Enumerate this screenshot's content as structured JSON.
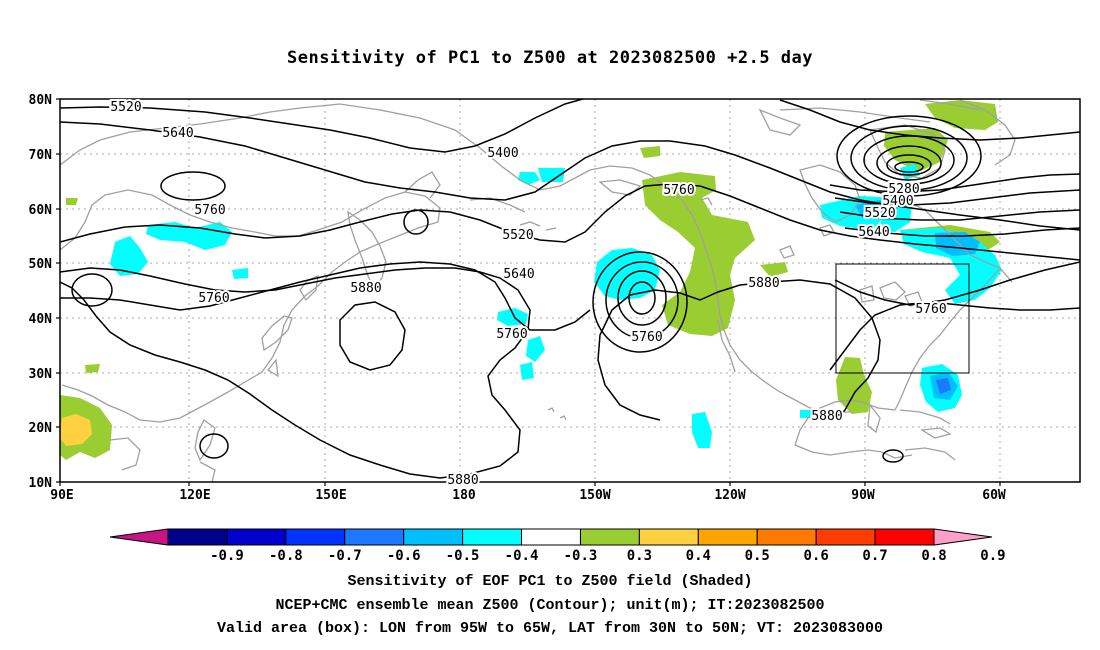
{
  "title": "Sensitivity of PC1 to Z500 at 2023082500 +2.5 day",
  "lat_labels": [
    "80N",
    "70N",
    "60N",
    "50N",
    "40N",
    "30N",
    "20N",
    "10N"
  ],
  "lon_labels": [
    "90E",
    "120E",
    "150E",
    "180",
    "150W",
    "120W",
    "90W",
    "60W"
  ],
  "contour_labels": [
    {
      "text": "5520"
    },
    {
      "text": "5640"
    },
    {
      "text": "5760"
    },
    {
      "text": "5760"
    },
    {
      "text": "5880"
    },
    {
      "text": "5400"
    },
    {
      "text": "5520"
    },
    {
      "text": "5640"
    },
    {
      "text": "5760"
    },
    {
      "text": "5760"
    },
    {
      "text": "5760"
    },
    {
      "text": "5880"
    },
    {
      "text": "5280"
    },
    {
      "text": "5400"
    },
    {
      "text": "5520"
    },
    {
      "text": "5640"
    },
    {
      "text": "5760"
    },
    {
      "text": "5880"
    },
    {
      "text": "5880"
    }
  ],
  "colorbar": {
    "labels": [
      "-0.9",
      "-0.8",
      "-0.7",
      "-0.6",
      "-0.5",
      "-0.4",
      "-0.3",
      "0.3",
      "0.4",
      "0.5",
      "0.6",
      "0.7",
      "0.8",
      "0.9"
    ],
    "colors": [
      "#c71585",
      "#00008b",
      "#0000cd",
      "#0033ff",
      "#1e78ff",
      "#00bfff",
      "#00ffff",
      "#ffffff",
      "#9acd32",
      "#ffd040",
      "#ffa500",
      "#ff7a00",
      "#ff3d00",
      "#ff0000",
      "#ff9ec8"
    ]
  },
  "valid_box": {
    "lon_w": "95W",
    "lon_e": "65W",
    "lat_s": "30N",
    "lat_n": "50N"
  },
  "captions": [
    "Sensitivity of EOF PC1 to Z500 field (Shaded)",
    "NCEP+CMC ensemble mean Z500 (Contour); unit(m); IT:2023082500",
    "Valid area (box): LON from 95W to 65W, LAT from 30N to 50N; VT: 2023083000"
  ]
}
